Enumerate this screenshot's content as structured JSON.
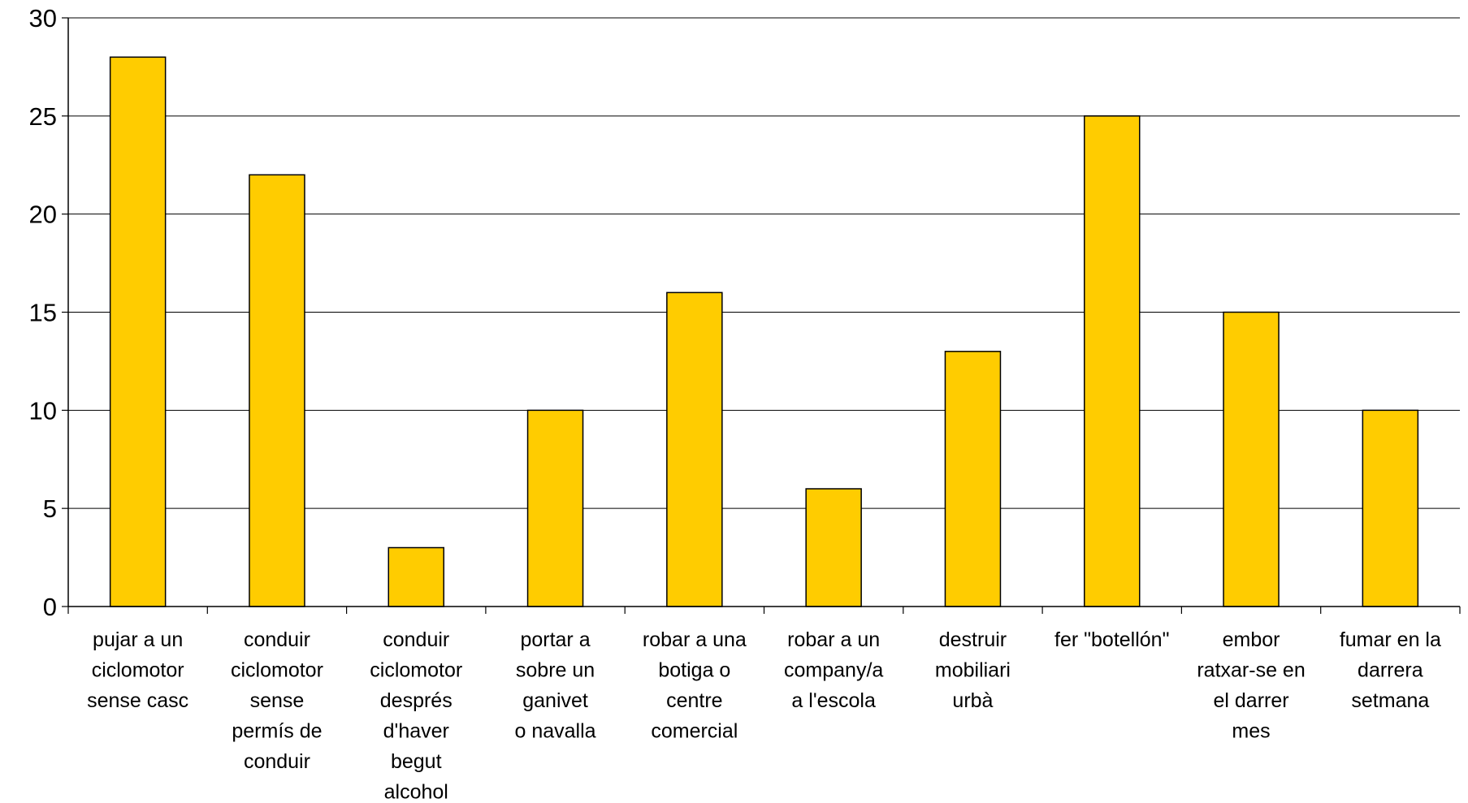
{
  "chart_data": {
    "type": "bar",
    "title": "",
    "xlabel": "",
    "ylabel": "",
    "ylim": [
      0,
      30
    ],
    "yticks": [
      0,
      5,
      10,
      15,
      20,
      25,
      30
    ],
    "grid": "horizontal",
    "legend": "none",
    "bar_color": "#FFCC00",
    "bar_edge_color": "#000000",
    "categories": [
      [
        "pujar a un",
        "ciclomotor",
        "sense casc"
      ],
      [
        "conduir",
        "ciclomotor",
        "sense",
        "permís de",
        "conduir"
      ],
      [
        "conduir",
        "ciclomotor",
        "després",
        "d'haver",
        "begut",
        "alcohol"
      ],
      [
        "portar a",
        "sobre un",
        "ganivet",
        "o navalla"
      ],
      [
        "robar a una",
        "botiga o",
        "centre",
        "comercial"
      ],
      [
        "robar a un",
        "company/a",
        "a l'escola"
      ],
      [
        "destruir",
        "mobiliari",
        "urbà"
      ],
      [
        "fer \"botellón\""
      ],
      [
        "embor",
        "ratxar-se en",
        "el darrer",
        "mes"
      ],
      [
        "fumar en la",
        "darrera",
        "setmana"
      ]
    ],
    "values": [
      28,
      22,
      3,
      10,
      16,
      6,
      13,
      25,
      15,
      10
    ]
  }
}
